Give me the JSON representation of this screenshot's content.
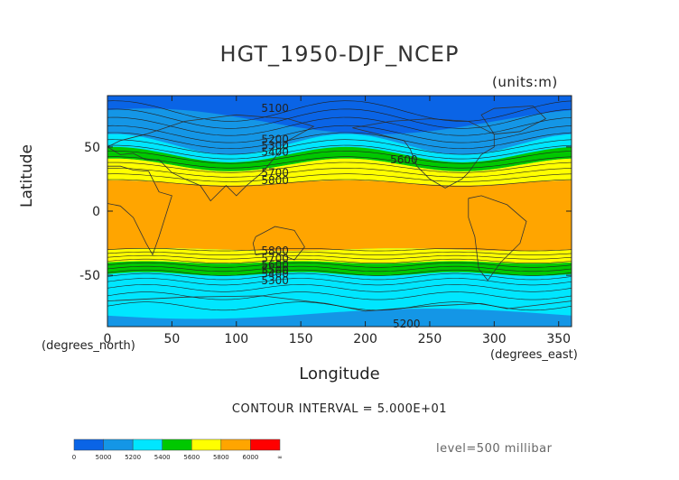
{
  "title": "HGT_1950-DJF_NCEP",
  "units_label": "(units:m)",
  "contour_interval": "CONTOUR INTERVAL = 5.000E+01",
  "level_label": "level=500 millibar",
  "colors": {
    "bin0": "#0a64e6",
    "bin1": "#1496e6",
    "bin2": "#00e6ff",
    "bin3": "#00c800",
    "bin4": "#ffff00",
    "bin5": "#ffa500",
    "bin6": "#ff0000",
    "coast": "#333333"
  },
  "chart_data": {
    "type": "heatmap",
    "xlabel": "Longitude",
    "ylabel": "Latitude",
    "x_unit": "(degrees_east)",
    "y_unit": "(degrees_north)",
    "xlim": [
      0,
      360
    ],
    "ylim": [
      -90,
      90
    ],
    "x_ticks": [
      0,
      50,
      100,
      150,
      200,
      250,
      300,
      350
    ],
    "y_ticks": [
      50,
      0,
      -50
    ],
    "colorbar": {
      "tick_labels": [
        "0",
        "5000",
        "5200",
        "5400",
        "5600",
        "5800",
        "6000",
        "∞"
      ]
    },
    "contour_labels": [
      {
        "text": "5100",
        "lon": 130,
        "lat": 80
      },
      {
        "text": "5200",
        "lon": 130,
        "lat": 56
      },
      {
        "text": "5300",
        "lon": 130,
        "lat": 51
      },
      {
        "text": "5400",
        "lon": 130,
        "lat": 46
      },
      {
        "text": "5600",
        "lon": 230,
        "lat": 40
      },
      {
        "text": "5700",
        "lon": 130,
        "lat": 30
      },
      {
        "text": "5800",
        "lon": 130,
        "lat": 24
      },
      {
        "text": "5800",
        "lon": 130,
        "lat": -31
      },
      {
        "text": "5700",
        "lon": 130,
        "lat": -37
      },
      {
        "text": "5600",
        "lon": 130,
        "lat": -42
      },
      {
        "text": "5500",
        "lon": 130,
        "lat": -46
      },
      {
        "text": "5400",
        "lon": 130,
        "lat": -49
      },
      {
        "text": "5300",
        "lon": 130,
        "lat": -54
      },
      {
        "text": "5200",
        "lon": 232,
        "lat": -88
      }
    ]
  }
}
